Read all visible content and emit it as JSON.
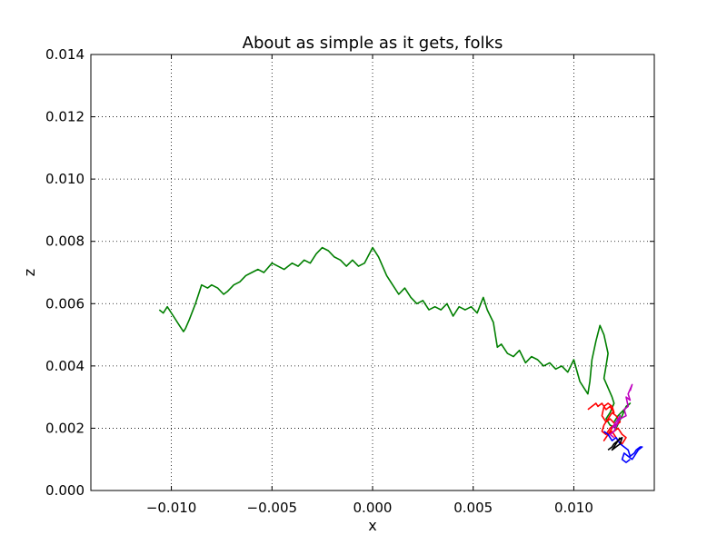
{
  "chart_data": {
    "type": "line",
    "title": "About as simple as it gets, folks",
    "xlabel": "x",
    "ylabel": "z",
    "xlim": [
      -0.014,
      0.014
    ],
    "ylim": [
      0.0,
      0.014
    ],
    "grid": true,
    "xticks": [
      -0.01,
      -0.005,
      0.0,
      0.005,
      0.01
    ],
    "xtick_labels": [
      "−0.010",
      "−0.005",
      "0.000",
      "0.005",
      "0.010"
    ],
    "yticks": [
      0.0,
      0.002,
      0.004,
      0.006,
      0.008,
      0.01,
      0.012,
      0.014
    ],
    "ytick_labels": [
      "0.000",
      "0.002",
      "0.004",
      "0.006",
      "0.008",
      "0.010",
      "0.012",
      "0.014"
    ],
    "series": [
      {
        "color": "#007f00",
        "x": [
          -0.0106,
          -0.0104,
          -0.0102,
          -0.0099,
          -0.0096,
          -0.0094,
          -0.0093,
          -0.0091,
          -0.0088,
          -0.0086,
          -0.0085,
          -0.0082,
          -0.008,
          -0.0077,
          -0.0074,
          -0.0072,
          -0.0069,
          -0.0066,
          -0.0063,
          -0.006,
          -0.0057,
          -0.0054,
          -0.005,
          -0.0047,
          -0.0044,
          -0.004,
          -0.0037,
          -0.0034,
          -0.0031,
          -0.0028,
          -0.0025,
          -0.0022,
          -0.0019,
          -0.0016,
          -0.0013,
          -0.001,
          -0.0007,
          -0.0004,
          0.0,
          0.0003,
          0.0007,
          0.001,
          0.0013,
          0.0016,
          0.0019,
          0.0022,
          0.0025,
          0.0028,
          0.0031,
          0.0034,
          0.0037,
          0.004,
          0.0043,
          0.0046,
          0.0049,
          0.0052,
          0.0055,
          0.0057,
          0.006,
          0.0062,
          0.0064,
          0.0067,
          0.007,
          0.0073,
          0.0076,
          0.0079,
          0.0082,
          0.0085,
          0.0088,
          0.0091,
          0.0094,
          0.0097,
          0.01,
          0.0103,
          0.0105,
          0.0107,
          0.0108,
          0.0109,
          0.0111,
          0.0113,
          0.0115,
          0.0116,
          0.0117,
          0.0116,
          0.0115,
          0.0117,
          0.0119,
          0.012,
          0.0118,
          0.0116,
          0.0118,
          0.0121,
          0.0124,
          0.0126,
          0.0128,
          0.0125,
          0.0122,
          0.012
        ],
        "y": [
          0.0058,
          0.0057,
          0.0059,
          0.0056,
          0.0053,
          0.0051,
          0.0052,
          0.0055,
          0.006,
          0.0064,
          0.0066,
          0.0065,
          0.0066,
          0.0065,
          0.0063,
          0.0064,
          0.0066,
          0.0067,
          0.0069,
          0.007,
          0.0071,
          0.007,
          0.0073,
          0.0072,
          0.0071,
          0.0073,
          0.0072,
          0.0074,
          0.0073,
          0.0076,
          0.0078,
          0.0077,
          0.0075,
          0.0074,
          0.0072,
          0.0074,
          0.0072,
          0.0073,
          0.0078,
          0.0075,
          0.0069,
          0.0066,
          0.0063,
          0.0065,
          0.0062,
          0.006,
          0.0061,
          0.0058,
          0.0059,
          0.0058,
          0.006,
          0.0056,
          0.0059,
          0.0058,
          0.0059,
          0.0057,
          0.0062,
          0.0058,
          0.0054,
          0.0046,
          0.0047,
          0.0044,
          0.0043,
          0.0045,
          0.0041,
          0.0043,
          0.0042,
          0.004,
          0.0041,
          0.0039,
          0.004,
          0.0038,
          0.0042,
          0.0035,
          0.0033,
          0.0031,
          0.0035,
          0.0042,
          0.0048,
          0.0053,
          0.005,
          0.0047,
          0.0044,
          0.004,
          0.0036,
          0.0033,
          0.003,
          0.0028,
          0.0025,
          0.0023,
          0.0021,
          0.002,
          0.0024,
          0.0027,
          0.0028,
          0.0026,
          0.0024,
          0.0022
        ]
      },
      {
        "color": "#ff0000",
        "x": [
          0.0107,
          0.0109,
          0.0111,
          0.0112,
          0.0114,
          0.0116,
          0.0118,
          0.012,
          0.0119,
          0.0117,
          0.0115,
          0.0114,
          0.0116,
          0.0118,
          0.0121,
          0.0123,
          0.0121,
          0.0119,
          0.0117,
          0.0115,
          0.0114,
          0.0116,
          0.0118,
          0.012,
          0.0118,
          0.0116,
          0.0115,
          0.0117,
          0.0119,
          0.0121,
          0.0122,
          0.0124,
          0.0126,
          0.0124,
          0.0122,
          0.012
        ],
        "y": [
          0.0026,
          0.0027,
          0.0028,
          0.0027,
          0.0028,
          0.0026,
          0.0027,
          0.0025,
          0.0027,
          0.0028,
          0.0027,
          0.0024,
          0.0022,
          0.0023,
          0.0021,
          0.0022,
          0.0024,
          0.0025,
          0.0023,
          0.0021,
          0.0019,
          0.0018,
          0.002,
          0.0021,
          0.0019,
          0.0017,
          0.0016,
          0.0018,
          0.0019,
          0.0017,
          0.0016,
          0.0015,
          0.0017,
          0.0018,
          0.002,
          0.0019
        ]
      },
      {
        "color": "#bf00bf",
        "x": [
          0.0128,
          0.0129,
          0.0127,
          0.0128,
          0.0126,
          0.0127,
          0.0125,
          0.0126,
          0.0123,
          0.0121,
          0.0119,
          0.0121,
          0.0123,
          0.0122,
          0.012,
          0.0118,
          0.012
        ],
        "y": [
          0.0032,
          0.0034,
          0.0031,
          0.0029,
          0.003,
          0.0027,
          0.0026,
          0.0024,
          0.0023,
          0.0021,
          0.002,
          0.0022,
          0.0024,
          0.0022,
          0.0019,
          0.0018,
          0.0017
        ]
      },
      {
        "color": "#0000ff",
        "x": [
          0.0115,
          0.0117,
          0.0119,
          0.0121,
          0.0123,
          0.0125,
          0.0127,
          0.0128,
          0.013,
          0.0131,
          0.0133,
          0.0134,
          0.0132,
          0.013,
          0.0129,
          0.0127,
          0.0125,
          0.0124,
          0.0126,
          0.0128
        ],
        "y": [
          0.0019,
          0.0018,
          0.0016,
          0.0017,
          0.0015,
          0.0014,
          0.0013,
          0.0011,
          0.0012,
          0.0013,
          0.0014,
          0.0014,
          0.0013,
          0.0011,
          0.001,
          0.0011,
          0.0012,
          0.001,
          0.0009,
          0.001
        ]
      },
      {
        "color": "#000000",
        "x": [
          0.0117,
          0.0119,
          0.012,
          0.0122,
          0.0124,
          0.0123,
          0.0121,
          0.0119,
          0.0121,
          0.0123
        ],
        "y": [
          0.0013,
          0.0014,
          0.0015,
          0.0016,
          0.0017,
          0.0015,
          0.0014,
          0.0013,
          0.0015,
          0.0017
        ]
      }
    ]
  }
}
